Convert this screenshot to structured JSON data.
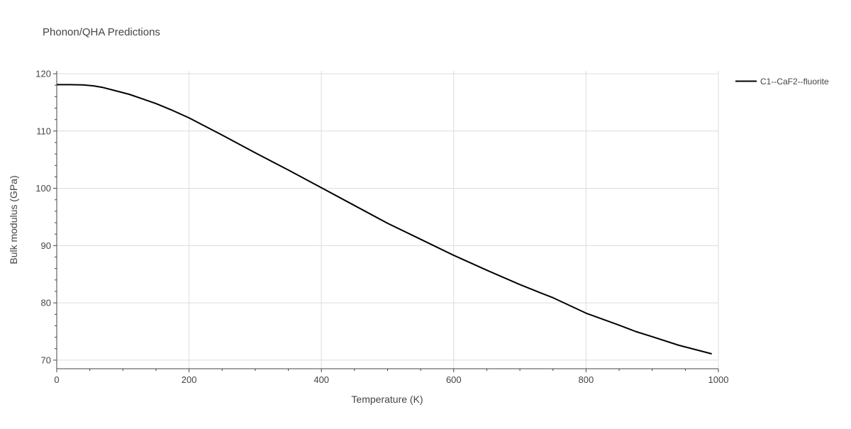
{
  "chart_data": {
    "type": "line",
    "title": "Phonon/QHA Predictions",
    "xlabel": "Temperature (K)",
    "ylabel": "Bulk modulus (GPa)",
    "xlim": [
      0,
      1000
    ],
    "ylim": [
      68.5,
      120.5
    ],
    "x_ticks": [
      0,
      200,
      400,
      600,
      800,
      1000
    ],
    "y_ticks": [
      70,
      80,
      90,
      100,
      110,
      120
    ],
    "grid": true,
    "legend_position": "top-right",
    "series": [
      {
        "name": "C1--CaF2--fluorite",
        "color": "#000000",
        "x": [
          0,
          20,
          40,
          55,
          70,
          90,
          110,
          130,
          150,
          175,
          200,
          250,
          300,
          350,
          400,
          450,
          500,
          550,
          600,
          650,
          700,
          730,
          750,
          800,
          850,
          875,
          900,
          940,
          990
        ],
        "y": [
          118.1,
          118.1,
          118.05,
          117.9,
          117.6,
          117.0,
          116.4,
          115.6,
          114.8,
          113.6,
          112.3,
          109.3,
          106.2,
          103.2,
          100.1,
          97.0,
          93.9,
          91.1,
          88.3,
          85.7,
          83.2,
          81.8,
          80.9,
          78.2,
          76.1,
          75.0,
          74.1,
          72.6,
          71.1
        ]
      }
    ]
  }
}
